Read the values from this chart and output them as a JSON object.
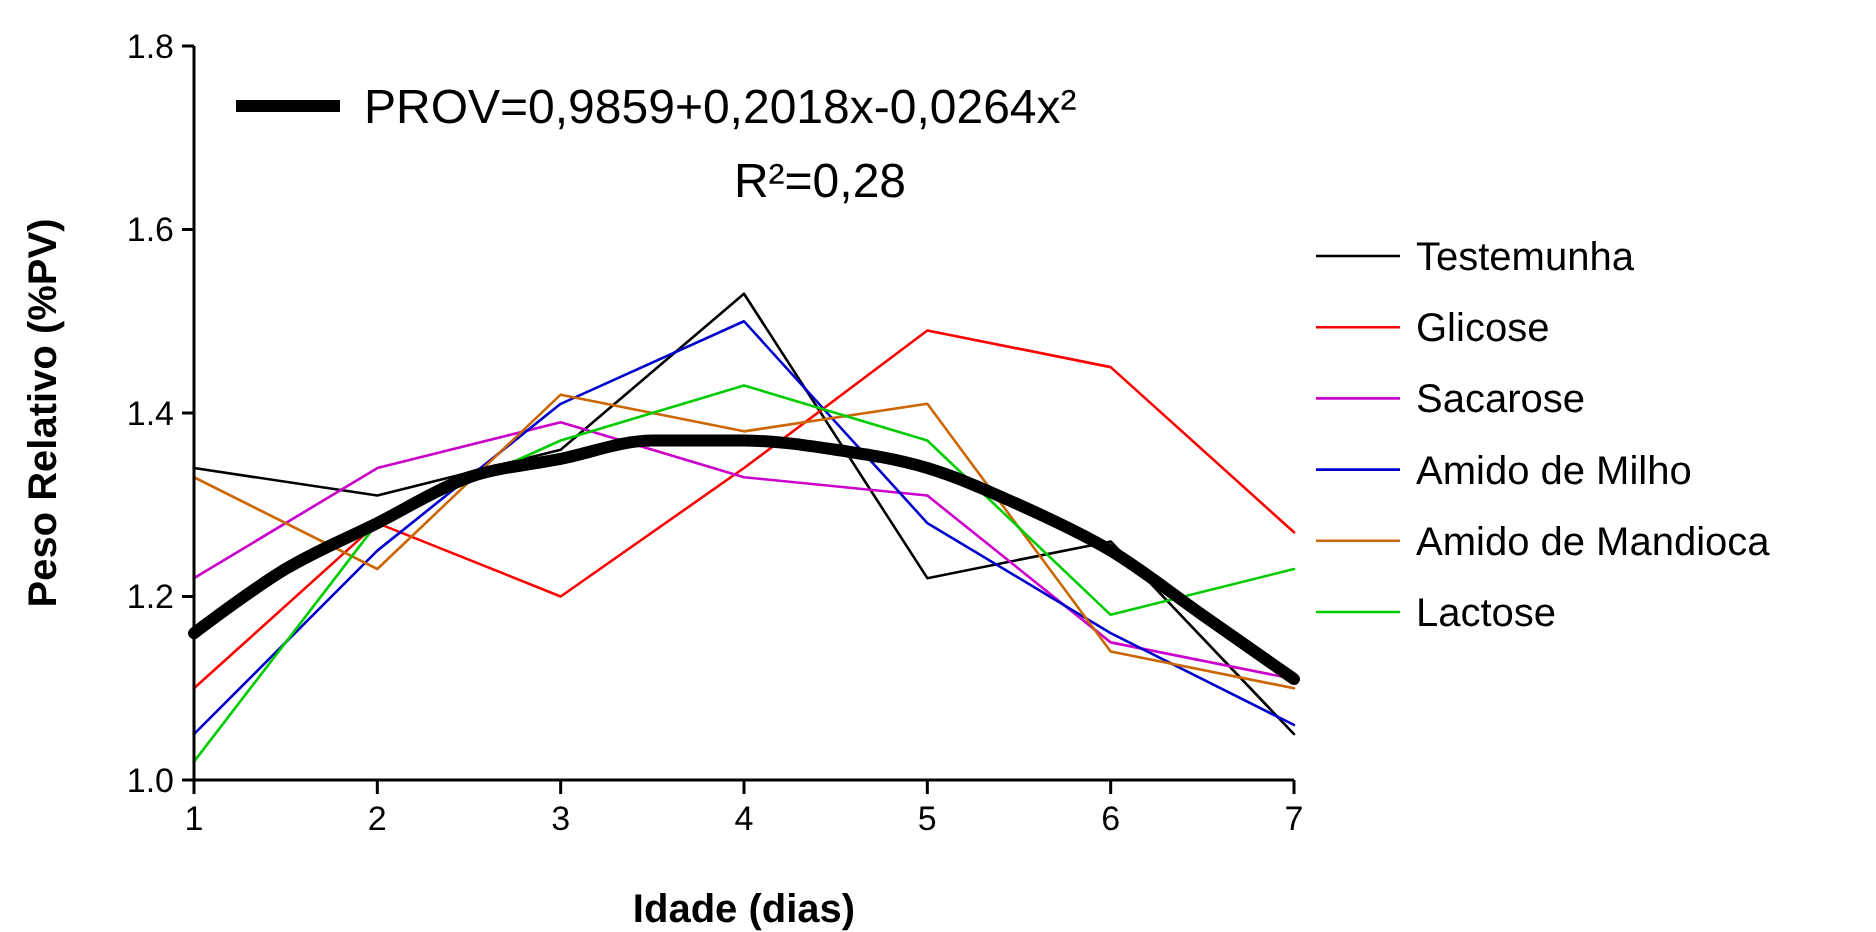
{
  "chart_data": {
    "type": "line",
    "xlabel": "Idade (dias)",
    "ylabel": "Peso Relativo (%PV)",
    "x": [
      1,
      2,
      3,
      4,
      5,
      6,
      7
    ],
    "xlim": [
      1,
      7
    ],
    "xticks": [
      1,
      2,
      3,
      4,
      5,
      6,
      7
    ],
    "ylim": [
      1.0,
      1.8
    ],
    "yticks": [
      {
        "value": 1.0,
        "label": "1.0"
      },
      {
        "value": 1.2,
        "label": "1.2"
      },
      {
        "value": 1.4,
        "label": "1.4"
      },
      {
        "value": 1.6,
        "label": "1.6"
      },
      {
        "value": 1.8,
        "label": "1.8"
      }
    ],
    "legend": "right",
    "marker": "none",
    "line_style": "solid",
    "annotations": [
      "R²=0,28"
    ],
    "series": [
      {
        "name": "Testemunha",
        "color": "#000000",
        "values": [
          1.34,
          1.31,
          1.36,
          1.53,
          1.22,
          1.26,
          1.05
        ]
      },
      {
        "name": "Glicose",
        "color": "#ff0000",
        "values": [
          1.1,
          1.28,
          1.2,
          1.34,
          1.49,
          1.45,
          1.27
        ]
      },
      {
        "name": "Sacarose",
        "color": "#cc00cc",
        "values": [
          1.22,
          1.34,
          1.39,
          1.33,
          1.31,
          1.15,
          1.11
        ]
      },
      {
        "name": "Amido de Milho",
        "color": "#0000cc",
        "values": [
          1.05,
          1.25,
          1.41,
          1.5,
          1.28,
          1.16,
          1.06
        ]
      },
      {
        "name": "Amido de Mandioca",
        "color": "#cc6600",
        "values": [
          1.33,
          1.23,
          1.42,
          1.38,
          1.41,
          1.14,
          1.1
        ]
      },
      {
        "name": "Lactose",
        "color": "#00cc00",
        "values": [
          1.02,
          1.28,
          1.37,
          1.43,
          1.37,
          1.18,
          1.23
        ]
      },
      {
        "name": "PROV=0,9859+0,2018x-0,0264x²",
        "color": "#000000",
        "x": [
          1,
          1.5,
          2,
          2.5,
          3,
          3.5,
          4,
          4.5,
          5,
          5.5,
          6,
          6.5,
          7
        ],
        "values": [
          1.16,
          1.23,
          1.28,
          1.33,
          1.35,
          1.37,
          1.37,
          1.36,
          1.34,
          1.3,
          1.25,
          1.18,
          1.11
        ]
      }
    ]
  }
}
